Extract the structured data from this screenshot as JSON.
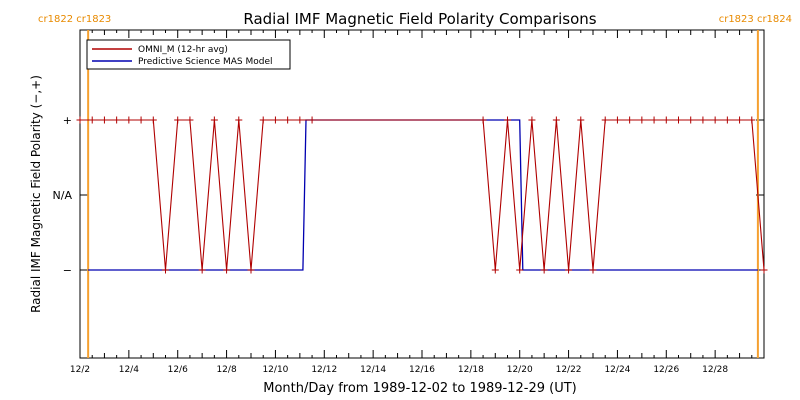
{
  "chart_data": {
    "type": "line",
    "title": "Radial IMF Magnetic Field Polarity Comparisons",
    "xlabel": "Month/Day from 1989-12-02 to 1989-12-29 (UT)",
    "ylabel": "Radial IMF Magnetic Field Polarity (−,+)",
    "xlim": [
      "1989-12-02T00:00",
      "1989-12-30T00:00"
    ],
    "y_levels": [
      "−",
      "N/A",
      "+"
    ],
    "x_ticks": [
      "12/2",
      "12/4",
      "12/6",
      "12/8",
      "12/10",
      "12/12",
      "12/14",
      "12/16",
      "12/18",
      "12/20",
      "12/22",
      "12/24",
      "12/26",
      "12/28"
    ],
    "y_ticks": [
      "+",
      "N/A",
      "−"
    ],
    "carrington_labels": {
      "left": "cr1822 cr1823",
      "right": "cr1823 cr1824"
    },
    "carrington_boundaries": [
      "1989-12-02T08:00",
      "1989-12-29T18:00"
    ],
    "legend": {
      "placement": "top-left"
    },
    "series": [
      {
        "name": "OMNI_M (12-hr avg)",
        "color": "#b00000",
        "marker": "plus",
        "x": [
          "1989-12-02T00:00",
          "1989-12-02T12:00",
          "1989-12-03T00:00",
          "1989-12-03T12:00",
          "1989-12-04T00:00",
          "1989-12-04T12:00",
          "1989-12-05T00:00",
          "1989-12-05T12:00",
          "1989-12-06T00:00",
          "1989-12-06T12:00",
          "1989-12-07T00:00",
          "1989-12-07T12:00",
          "1989-12-08T00:00",
          "1989-12-08T12:00",
          "1989-12-09T00:00",
          "1989-12-09T12:00",
          "1989-12-10T00:00",
          "1989-12-10T12:00",
          "1989-12-11T00:00",
          "1989-12-11T12:00",
          "1989-12-18T12:00",
          "1989-12-19T00:00",
          "1989-12-19T12:00",
          "1989-12-20T00:00",
          "1989-12-20T12:00",
          "1989-12-21T00:00",
          "1989-12-21T12:00",
          "1989-12-22T00:00",
          "1989-12-22T12:00",
          "1989-12-23T00:00",
          "1989-12-23T12:00",
          "1989-12-24T00:00",
          "1989-12-24T12:00",
          "1989-12-25T00:00",
          "1989-12-25T12:00",
          "1989-12-26T00:00",
          "1989-12-26T12:00",
          "1989-12-27T00:00",
          "1989-12-27T12:00",
          "1989-12-28T00:00",
          "1989-12-28T12:00",
          "1989-12-29T00:00",
          "1989-12-29T12:00",
          "1989-12-30T00:00"
        ],
        "y": [
          "+",
          "+",
          "+",
          "+",
          "+",
          "+",
          "+",
          "−",
          "+",
          "+",
          "−",
          "+",
          "−",
          "+",
          "−",
          "+",
          "+",
          "+",
          "+",
          "+",
          "+",
          "−",
          "+",
          "−",
          "+",
          "−",
          "+",
          "−",
          "+",
          "−",
          "+",
          "+",
          "+",
          "+",
          "+",
          "+",
          "+",
          "+",
          "+",
          "+",
          "+",
          "+",
          "+",
          "−"
        ]
      },
      {
        "name": "Predictive Science MAS Model",
        "color": "#0000b0",
        "marker": "none",
        "step_x": [
          "1989-12-02T08:00",
          "1989-12-11T03:00",
          "1989-12-11T06:00",
          "1989-12-20T00:00",
          "1989-12-20T03:00",
          "1989-12-29T18:00"
        ],
        "step_y": [
          "−",
          "−",
          "+",
          "+",
          "−",
          "−"
        ]
      }
    ]
  }
}
